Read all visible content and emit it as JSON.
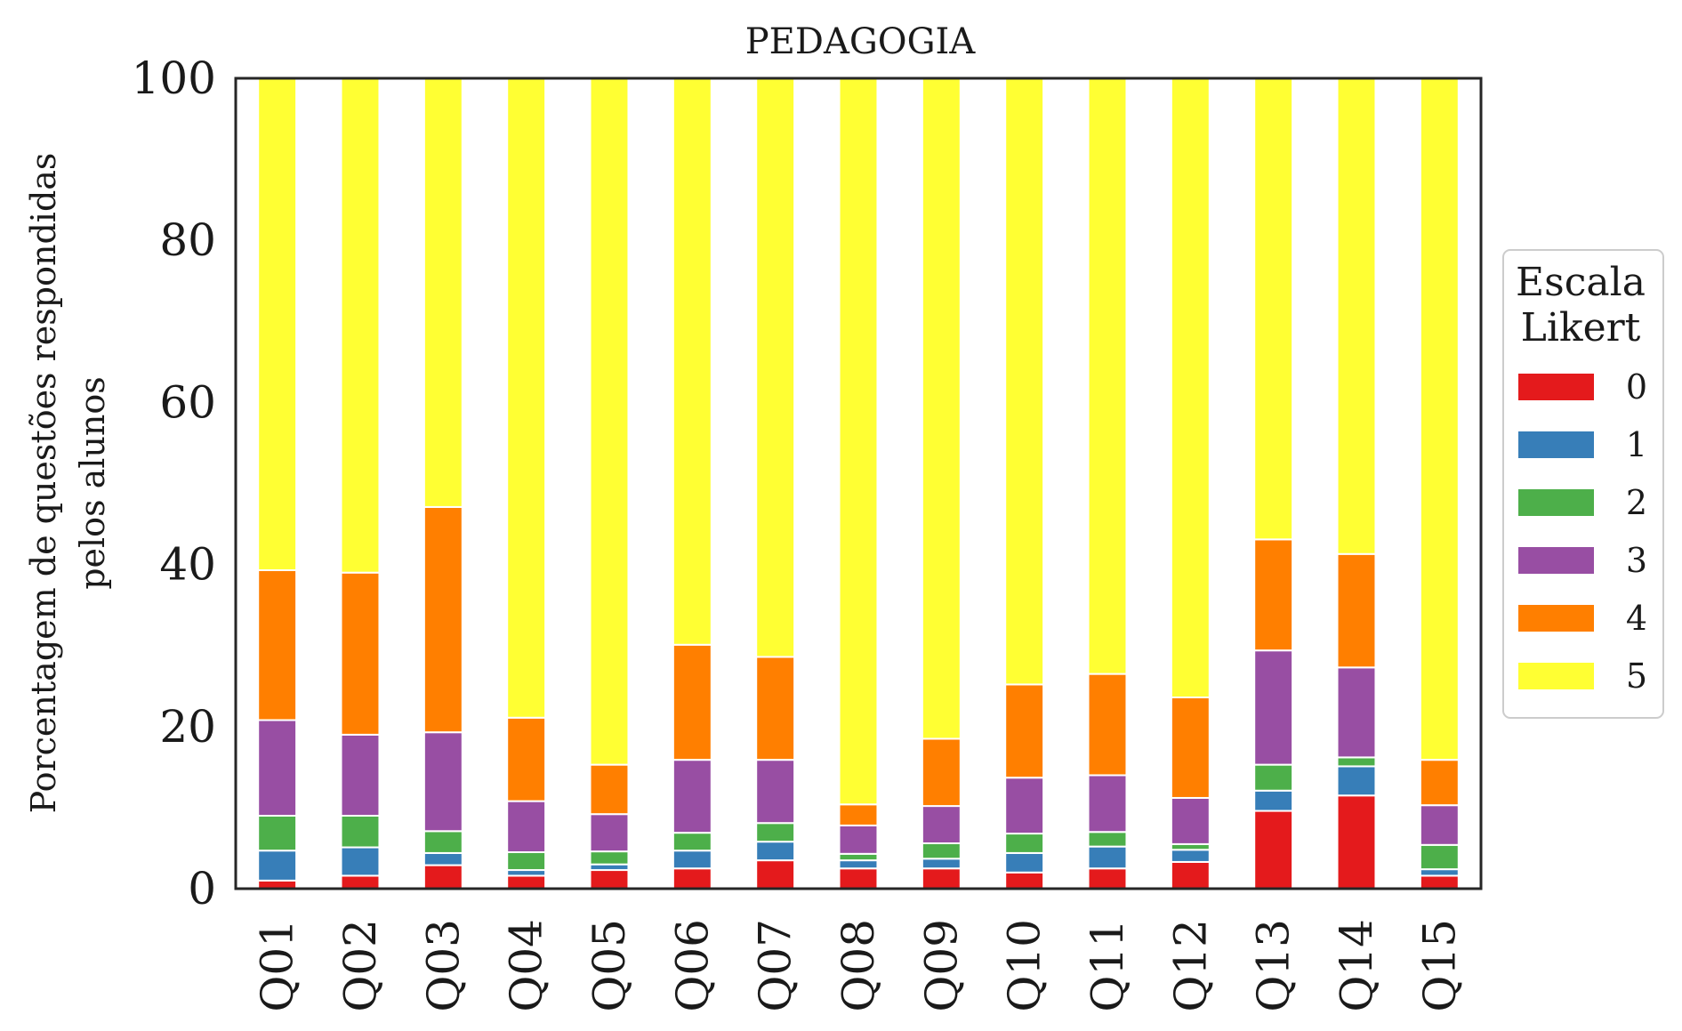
{
  "chart_data": {
    "type": "bar",
    "stacked": true,
    "title": "PEDAGOGIA",
    "xlabel": "",
    "ylabel_lines": [
      "Porcentagem de questões respondidas",
      "pelos alunos"
    ],
    "ylim": [
      0,
      100
    ],
    "yticks": [
      "0",
      "20",
      "40",
      "60",
      "80",
      "100"
    ],
    "ytick_values": [
      0,
      20,
      40,
      60,
      80,
      100
    ],
    "grid": false,
    "legend": {
      "title_lines": [
        "Escala",
        "Likert"
      ],
      "placement": "center-right, outside plot"
    },
    "categories": [
      "Q01",
      "Q02",
      "Q03",
      "Q04",
      "Q05",
      "Q06",
      "Q07",
      "Q08",
      "Q09",
      "Q10",
      "Q11",
      "Q12",
      "Q13",
      "Q14",
      "Q15"
    ],
    "series": [
      {
        "name": "0",
        "color": "#e41a1c",
        "values": [
          1.0,
          1.6,
          2.9,
          1.6,
          2.3,
          2.5,
          3.5,
          2.5,
          2.5,
          2.0,
          2.5,
          3.3,
          9.6,
          11.5,
          1.6
        ]
      },
      {
        "name": "1",
        "color": "#377eb8",
        "values": [
          3.7,
          3.5,
          1.5,
          0.7,
          0.7,
          2.2,
          2.3,
          1.0,
          1.2,
          2.4,
          2.7,
          1.5,
          2.5,
          3.6,
          0.8
        ]
      },
      {
        "name": "2",
        "color": "#4daf4a",
        "values": [
          4.3,
          3.9,
          2.7,
          2.2,
          1.6,
          2.2,
          2.3,
          0.8,
          1.9,
          2.4,
          1.8,
          0.7,
          3.2,
          1.1,
          3.0
        ]
      },
      {
        "name": "3",
        "color": "#984ea3",
        "values": [
          11.8,
          10.0,
          12.2,
          6.3,
          4.6,
          9.0,
          7.8,
          3.5,
          4.6,
          6.9,
          7.0,
          5.7,
          14.1,
          11.1,
          4.9
        ]
      },
      {
        "name": "4",
        "color": "#ff7f00",
        "values": [
          18.5,
          20.0,
          27.8,
          10.3,
          6.1,
          14.2,
          12.7,
          2.6,
          8.3,
          11.5,
          12.5,
          12.4,
          13.7,
          14.0,
          5.6
        ]
      },
      {
        "name": "5",
        "color": "#ffff33",
        "values": [
          60.7,
          61.0,
          52.9,
          78.9,
          84.7,
          69.9,
          71.4,
          89.6,
          81.5,
          74.8,
          73.5,
          76.4,
          56.9,
          58.7,
          84.1
        ]
      }
    ]
  }
}
